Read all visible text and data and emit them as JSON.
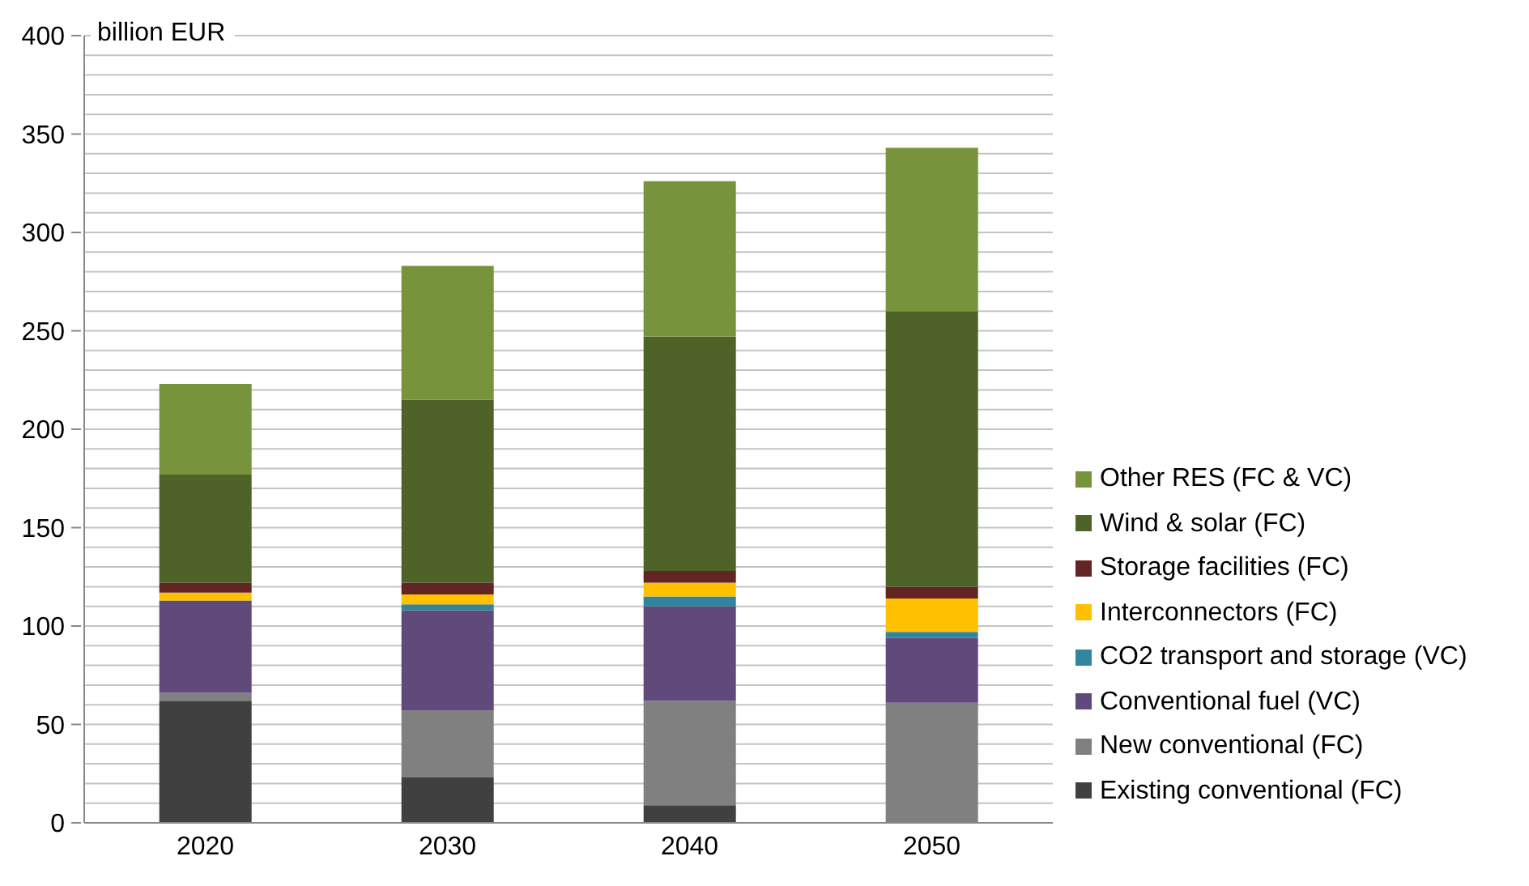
{
  "chart_data": {
    "type": "bar",
    "stacked": true,
    "ylabel": "billion EUR",
    "categories": [
      "2020",
      "2030",
      "2040",
      "2050"
    ],
    "series": [
      {
        "name": "Existing conventional (FC)",
        "color": "#404040",
        "values": [
          62,
          23,
          9,
          0
        ]
      },
      {
        "name": "New conventional (FC)",
        "color": "#808080",
        "values": [
          4,
          34,
          53,
          61
        ]
      },
      {
        "name": "Conventional fuel (VC)",
        "color": "#604a7b",
        "values": [
          47,
          51,
          48,
          33
        ]
      },
      {
        "name": "CO2 transport and storage (VC)",
        "color": "#31859c",
        "values": [
          0,
          3,
          5,
          3
        ]
      },
      {
        "name": "Interconnectors (FC)",
        "color": "#ffc000",
        "values": [
          4,
          5,
          7,
          17
        ]
      },
      {
        "name": "Storage facilities (FC)",
        "color": "#632523",
        "values": [
          5,
          6,
          6,
          6
        ]
      },
      {
        "name": "Wind & solar (FC)",
        "color": "#4f6228",
        "values": [
          55,
          93,
          119,
          140
        ]
      },
      {
        "name": "Other RES (FC & VC)",
        "color": "#77933c",
        "values": [
          46,
          68,
          79,
          83
        ]
      }
    ],
    "ylim": [
      0,
      400
    ],
    "yticks": [
      0,
      {
        "value": 10,
        "label": null
      },
      {
        "value": 20,
        "label": null
      },
      {
        "value": 30,
        "label": null
      },
      {
        "value": 40,
        "label": null
      },
      50,
      {
        "value": 60,
        "label": null
      },
      {
        "value": 70,
        "label": null
      },
      {
        "value": 80,
        "label": null
      },
      {
        "value": 90,
        "label": null
      },
      100,
      {
        "value": 110,
        "label": null
      },
      {
        "value": 120,
        "label": null
      },
      {
        "value": 130,
        "label": null
      },
      {
        "value": 140,
        "label": null
      },
      150,
      {
        "value": 160,
        "label": null
      },
      {
        "value": 170,
        "label": null
      },
      {
        "value": 180,
        "label": null
      },
      {
        "value": 190,
        "label": null
      },
      200,
      {
        "value": 210,
        "label": null
      },
      {
        "value": 220,
        "label": null
      },
      {
        "value": 230,
        "label": null
      },
      {
        "value": 240,
        "label": null
      },
      250,
      {
        "value": 260,
        "label": null
      },
      {
        "value": 270,
        "label": null
      },
      {
        "value": 280,
        "label": null
      },
      {
        "value": 290,
        "label": null
      },
      300,
      {
        "value": 310,
        "label": null
      },
      {
        "value": 320,
        "label": null
      },
      {
        "value": 330,
        "label": null
      },
      {
        "value": 340,
        "label": null
      },
      350,
      {
        "value": 360,
        "label": null
      },
      {
        "value": 370,
        "label": null
      },
      {
        "value": 380,
        "label": null
      },
      {
        "value": 390,
        "label": null
      },
      400
    ],
    "grid": "y",
    "legend": "right"
  }
}
